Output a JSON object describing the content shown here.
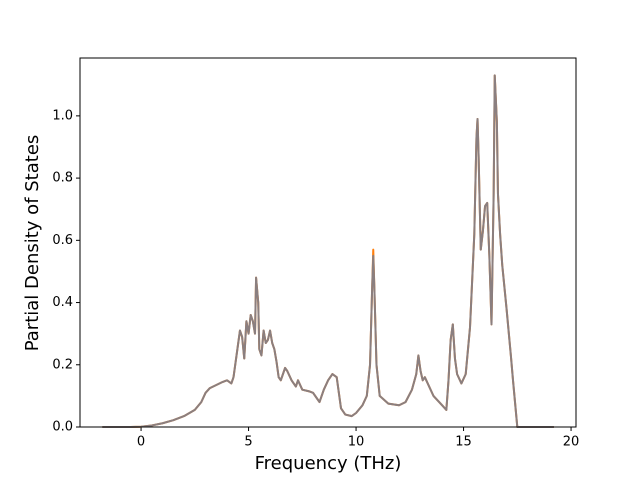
{
  "chart_data": {
    "type": "line",
    "xlabel": "Frequency (THz)",
    "ylabel": "Partial Density of States",
    "x": [
      -1.8,
      -0.5,
      0,
      0.5,
      1,
      1.5,
      2,
      2.5,
      2.8,
      3.0,
      3.2,
      3.5,
      3.8,
      4.0,
      4.2,
      4.3,
      4.5,
      4.6,
      4.7,
      4.8,
      4.9,
      5.0,
      5.1,
      5.2,
      5.3,
      5.35,
      5.45,
      5.5,
      5.6,
      5.7,
      5.8,
      5.9,
      6.0,
      6.1,
      6.2,
      6.3,
      6.4,
      6.5,
      6.7,
      6.8,
      7.0,
      7.2,
      7.3,
      7.5,
      7.8,
      8.0,
      8.2,
      8.3,
      8.5,
      8.7,
      8.9,
      9.1,
      9.3,
      9.5,
      9.8,
      10.0,
      10.3,
      10.5,
      10.65,
      10.75,
      10.8,
      10.85,
      10.95,
      11.1,
      11.5,
      12.0,
      12.3,
      12.6,
      12.8,
      12.9,
      13.0,
      13.1,
      13.2,
      13.4,
      13.6,
      14.0,
      14.2,
      14.3,
      14.4,
      14.5,
      14.6,
      14.7,
      14.9,
      15.1,
      15.3,
      15.5,
      15.6,
      15.65,
      15.7,
      15.8,
      15.9,
      16.0,
      16.1,
      16.2,
      16.3,
      16.4,
      16.45,
      16.55,
      16.6,
      16.7,
      16.8,
      17.0,
      17.2,
      17.3,
      17.5,
      19.2
    ],
    "series": [
      {
        "color": "#ff7f0e",
        "values": [
          0,
          0,
          0.001,
          0.005,
          0.012,
          0.022,
          0.035,
          0.055,
          0.08,
          0.11,
          0.125,
          0.135,
          0.145,
          0.15,
          0.14,
          0.16,
          0.26,
          0.31,
          0.29,
          0.22,
          0.34,
          0.3,
          0.36,
          0.34,
          0.3,
          0.48,
          0.4,
          0.25,
          0.23,
          0.31,
          0.27,
          0.28,
          0.31,
          0.27,
          0.25,
          0.21,
          0.16,
          0.15,
          0.19,
          0.18,
          0.15,
          0.13,
          0.15,
          0.12,
          0.115,
          0.11,
          0.09,
          0.08,
          0.12,
          0.15,
          0.17,
          0.16,
          0.06,
          0.04,
          0.035,
          0.045,
          0.07,
          0.1,
          0.2,
          0.45,
          0.57,
          0.45,
          0.2,
          0.1,
          0.075,
          0.07,
          0.08,
          0.12,
          0.17,
          0.23,
          0.18,
          0.15,
          0.16,
          0.13,
          0.1,
          0.07,
          0.055,
          0.15,
          0.28,
          0.33,
          0.22,
          0.17,
          0.14,
          0.17,
          0.32,
          0.62,
          0.93,
          0.99,
          0.87,
          0.57,
          0.63,
          0.71,
          0.72,
          0.55,
          0.33,
          0.75,
          1.13,
          0.98,
          0.75,
          0.62,
          0.52,
          0.38,
          0.23,
          0.15,
          0,
          0
        ]
      },
      {
        "color": "#8a7f80",
        "values": [
          0,
          0,
          0.001,
          0.005,
          0.012,
          0.022,
          0.035,
          0.055,
          0.08,
          0.11,
          0.125,
          0.135,
          0.145,
          0.15,
          0.14,
          0.16,
          0.26,
          0.31,
          0.29,
          0.22,
          0.34,
          0.3,
          0.36,
          0.34,
          0.3,
          0.48,
          0.4,
          0.25,
          0.23,
          0.31,
          0.27,
          0.28,
          0.31,
          0.27,
          0.25,
          0.21,
          0.16,
          0.15,
          0.19,
          0.18,
          0.15,
          0.13,
          0.15,
          0.12,
          0.115,
          0.11,
          0.09,
          0.08,
          0.12,
          0.15,
          0.17,
          0.16,
          0.06,
          0.04,
          0.035,
          0.045,
          0.07,
          0.1,
          0.2,
          0.45,
          0.55,
          0.45,
          0.2,
          0.1,
          0.075,
          0.07,
          0.08,
          0.12,
          0.17,
          0.23,
          0.18,
          0.15,
          0.16,
          0.13,
          0.1,
          0.07,
          0.055,
          0.15,
          0.28,
          0.33,
          0.22,
          0.17,
          0.14,
          0.17,
          0.32,
          0.62,
          0.93,
          0.99,
          0.87,
          0.57,
          0.63,
          0.71,
          0.72,
          0.55,
          0.33,
          0.75,
          1.13,
          0.98,
          0.75,
          0.62,
          0.52,
          0.38,
          0.23,
          0.15,
          0,
          0
        ]
      }
    ],
    "xlim": [
      -2.84,
      20.23
    ],
    "xticks": [
      0,
      5,
      10,
      15,
      20
    ],
    "ylim": [
      0,
      1.186
    ],
    "yticks": [
      {
        "value": 0,
        "label": "0.0"
      },
      0.2,
      0.4,
      0.6,
      0.8,
      {
        "value": 1,
        "label": "1.0"
      }
    ]
  }
}
